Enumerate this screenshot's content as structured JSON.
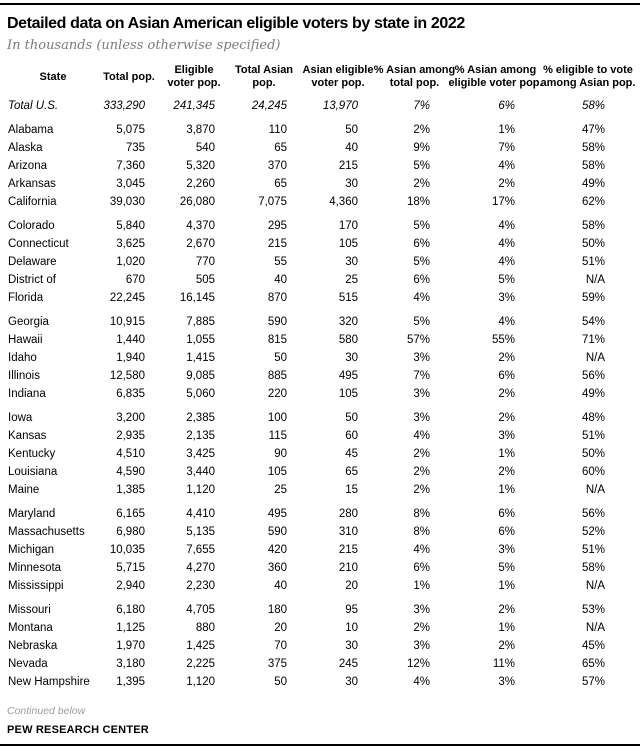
{
  "header": {
    "title": "Detailed data on Asian American eligible voters by state in 2022",
    "subtitle": "In thousands (unless otherwise specified)"
  },
  "chart_data": {
    "type": "table",
    "title": "Detailed data on Asian American eligible voters by state in 2022",
    "subtitle": "In thousands (unless otherwise specified)",
    "columns": [
      "State",
      "Total pop.",
      "Eligible voter pop.",
      "Total Asian pop.",
      "Asian eligible voter pop.",
      "% Asian among total pop.",
      "% Asian among eligible voter pop.",
      "% eligible to vote among Asian pop."
    ],
    "row_groups": [
      [
        {
          "state": "Total U.S.",
          "is_total": true,
          "values": [
            "333,290",
            "241,345",
            "24,245",
            "13,970",
            "7%",
            "6%",
            "58%"
          ]
        }
      ],
      [
        {
          "state": "Alabama",
          "values": [
            "5,075",
            "3,870",
            "110",
            "50",
            "2%",
            "1%",
            "47%"
          ]
        },
        {
          "state": "Alaska",
          "values": [
            "735",
            "540",
            "65",
            "40",
            "9%",
            "7%",
            "58%"
          ]
        },
        {
          "state": "Arizona",
          "values": [
            "7,360",
            "5,320",
            "370",
            "215",
            "5%",
            "4%",
            "58%"
          ]
        },
        {
          "state": "Arkansas",
          "values": [
            "3,045",
            "2,260",
            "65",
            "30",
            "2%",
            "2%",
            "49%"
          ]
        },
        {
          "state": "California",
          "values": [
            "39,030",
            "26,080",
            "7,075",
            "4,360",
            "18%",
            "17%",
            "62%"
          ]
        }
      ],
      [
        {
          "state": "Colorado",
          "values": [
            "5,840",
            "4,370",
            "295",
            "170",
            "5%",
            "4%",
            "58%"
          ]
        },
        {
          "state": "Connecticut",
          "values": [
            "3,625",
            "2,670",
            "215",
            "105",
            "6%",
            "4%",
            "50%"
          ]
        },
        {
          "state": "Delaware",
          "values": [
            "1,020",
            "770",
            "55",
            "30",
            "5%",
            "4%",
            "51%"
          ]
        },
        {
          "state": "District of",
          "values": [
            "670",
            "505",
            "40",
            "25",
            "6%",
            "5%",
            "N/A"
          ]
        },
        {
          "state": "Florida",
          "values": [
            "22,245",
            "16,145",
            "870",
            "515",
            "4%",
            "3%",
            "59%"
          ]
        }
      ],
      [
        {
          "state": "Georgia",
          "values": [
            "10,915",
            "7,885",
            "590",
            "320",
            "5%",
            "4%",
            "54%"
          ]
        },
        {
          "state": "Hawaii",
          "values": [
            "1,440",
            "1,055",
            "815",
            "580",
            "57%",
            "55%",
            "71%"
          ]
        },
        {
          "state": "Idaho",
          "values": [
            "1,940",
            "1,415",
            "50",
            "30",
            "3%",
            "2%",
            "N/A"
          ]
        },
        {
          "state": "Illinois",
          "values": [
            "12,580",
            "9,085",
            "885",
            "495",
            "7%",
            "6%",
            "56%"
          ]
        },
        {
          "state": "Indiana",
          "values": [
            "6,835",
            "5,060",
            "220",
            "105",
            "3%",
            "2%",
            "49%"
          ]
        }
      ],
      [
        {
          "state": "Iowa",
          "values": [
            "3,200",
            "2,385",
            "100",
            "50",
            "3%",
            "2%",
            "48%"
          ]
        },
        {
          "state": "Kansas",
          "values": [
            "2,935",
            "2,135",
            "115",
            "60",
            "4%",
            "3%",
            "51%"
          ]
        },
        {
          "state": "Kentucky",
          "values": [
            "4,510",
            "3,425",
            "90",
            "45",
            "2%",
            "1%",
            "50%"
          ]
        },
        {
          "state": "Louisiana",
          "values": [
            "4,590",
            "3,440",
            "105",
            "65",
            "2%",
            "2%",
            "60%"
          ]
        },
        {
          "state": "Maine",
          "values": [
            "1,385",
            "1,120",
            "25",
            "15",
            "2%",
            "1%",
            "N/A"
          ]
        }
      ],
      [
        {
          "state": "Maryland",
          "values": [
            "6,165",
            "4,410",
            "495",
            "280",
            "8%",
            "6%",
            "56%"
          ]
        },
        {
          "state": "Massachusetts",
          "values": [
            "6,980",
            "5,135",
            "590",
            "310",
            "8%",
            "6%",
            "52%"
          ]
        },
        {
          "state": "Michigan",
          "values": [
            "10,035",
            "7,655",
            "420",
            "215",
            "4%",
            "3%",
            "51%"
          ]
        },
        {
          "state": "Minnesota",
          "values": [
            "5,715",
            "4,270",
            "360",
            "210",
            "6%",
            "5%",
            "58%"
          ]
        },
        {
          "state": "Mississippi",
          "values": [
            "2,940",
            "2,230",
            "40",
            "20",
            "1%",
            "1%",
            "N/A"
          ]
        }
      ],
      [
        {
          "state": "Missouri",
          "values": [
            "6,180",
            "4,705",
            "180",
            "95",
            "3%",
            "2%",
            "53%"
          ]
        },
        {
          "state": "Montana",
          "values": [
            "1,125",
            "880",
            "20",
            "10",
            "2%",
            "1%",
            "N/A"
          ]
        },
        {
          "state": "Nebraska",
          "values": [
            "1,970",
            "1,425",
            "70",
            "30",
            "3%",
            "2%",
            "45%"
          ]
        },
        {
          "state": "Nevada",
          "values": [
            "3,180",
            "2,225",
            "375",
            "245",
            "12%",
            "11%",
            "65%"
          ]
        },
        {
          "state": "New Hampshire",
          "values": [
            "1,395",
            "1,120",
            "50",
            "30",
            "4%",
            "3%",
            "57%"
          ]
        }
      ]
    ]
  },
  "footer": {
    "continued": "Continued below",
    "source": "PEW RESEARCH CENTER"
  },
  "colors": {
    "rule_black": "#000000",
    "subtitle_gray": "#7b7b7b",
    "note_gray": "#9c9c9c"
  }
}
